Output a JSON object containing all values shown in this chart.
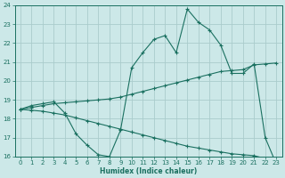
{
  "xlabel": "Humidex (Indice chaleur)",
  "xlim": [
    -0.5,
    23.5
  ],
  "ylim": [
    16,
    24
  ],
  "yticks": [
    16,
    17,
    18,
    19,
    20,
    21,
    22,
    23,
    24
  ],
  "xticks": [
    0,
    1,
    2,
    3,
    4,
    5,
    6,
    7,
    8,
    9,
    10,
    11,
    12,
    13,
    14,
    15,
    16,
    17,
    18,
    19,
    20,
    21,
    22,
    23
  ],
  "bg_color": "#cce8e8",
  "grid_color": "#aacccc",
  "line_color": "#1a7060",
  "curve1_x": [
    0,
    1,
    2,
    3,
    4,
    5,
    6,
    7,
    8,
    9,
    10,
    11,
    12,
    13,
    14,
    15,
    16,
    17,
    18,
    19,
    20,
    21,
    22,
    23
  ],
  "curve1_y": [
    18.5,
    18.7,
    18.8,
    18.9,
    18.3,
    17.2,
    16.6,
    16.1,
    16.0,
    17.4,
    20.7,
    21.5,
    22.2,
    22.4,
    21.5,
    23.8,
    23.1,
    22.7,
    21.9,
    20.4,
    20.4,
    20.9,
    17.0,
    15.6
  ],
  "curve2_x": [
    0,
    1,
    2,
    3,
    4,
    5,
    6,
    7,
    8,
    9,
    10,
    11,
    12,
    13,
    14,
    15,
    16,
    17,
    18,
    19,
    20,
    21,
    22,
    23
  ],
  "curve2_y": [
    18.5,
    18.6,
    18.7,
    18.8,
    18.85,
    18.9,
    18.95,
    19.0,
    19.05,
    19.15,
    19.3,
    19.45,
    19.6,
    19.75,
    19.9,
    20.05,
    20.2,
    20.35,
    20.5,
    20.55,
    20.6,
    20.85,
    20.9,
    20.95
  ],
  "curve3_x": [
    0,
    1,
    2,
    3,
    4,
    5,
    6,
    7,
    8,
    9,
    10,
    11,
    12,
    13,
    14,
    15,
    16,
    17,
    18,
    19,
    20,
    21,
    22,
    23
  ],
  "curve3_y": [
    18.5,
    18.45,
    18.4,
    18.3,
    18.2,
    18.05,
    17.9,
    17.75,
    17.6,
    17.45,
    17.3,
    17.15,
    17.0,
    16.85,
    16.7,
    16.55,
    16.45,
    16.35,
    16.25,
    16.15,
    16.1,
    16.05,
    15.9,
    15.75
  ]
}
